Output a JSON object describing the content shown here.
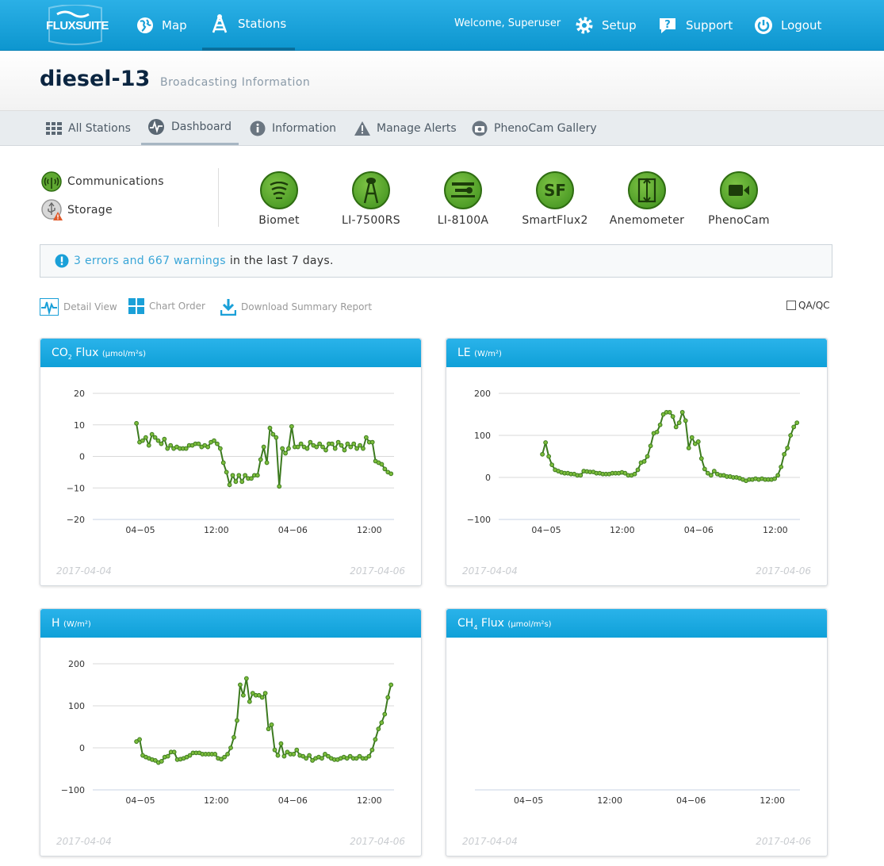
{
  "app": {
    "logo_text": "FLUXSUITE"
  },
  "topnav": {
    "map": "Map",
    "stations": "Stations",
    "welcome": "Welcome, Superuser",
    "setup": "Setup",
    "support": "Support",
    "logout": "Logout"
  },
  "station": {
    "name": "diesel-13",
    "status": "Broadcasting Information"
  },
  "subnav": {
    "all_stations": "All Stations",
    "dashboard": "Dashboard",
    "information": "Information",
    "manage_alerts": "Manage Alerts",
    "phenocam_gallery": "PhenoCam Gallery"
  },
  "status": {
    "communications": "Communications",
    "storage": "Storage"
  },
  "devices": [
    {
      "label": "Biomet",
      "icon": "biomet-icon"
    },
    {
      "label": "LI-7500RS",
      "icon": "analyzer-icon"
    },
    {
      "label": "LI-8100A",
      "icon": "chamber-icon"
    },
    {
      "label": "SmartFlux2",
      "icon": "sf-icon",
      "glyph": "SF"
    },
    {
      "label": "Anemometer",
      "icon": "anemometer-icon"
    },
    {
      "label": "PhenoCam",
      "icon": "camera-icon"
    }
  ],
  "alerts": {
    "link": "3 errors and 667 warnings",
    "suffix": "in the last 7 days."
  },
  "tools": {
    "detail_view": "Detail View",
    "chart_order": "Chart Order",
    "download": "Download Summary Report",
    "qaqc": "QA/QC"
  },
  "colors": {
    "accent": "#1aa7e0",
    "series": "#3c7a1f",
    "marker": "#7cbd3c"
  },
  "chart_data": [
    {
      "type": "line",
      "title": "CO2 Flux",
      "unit": "(μmol/m²s)",
      "ylim": [
        -20,
        20
      ],
      "yticks": [
        "20",
        "10",
        "0",
        "−10",
        "−20"
      ],
      "xticks": [
        "04−05",
        "12:00",
        "04−06",
        "12:00"
      ],
      "date_start": "2017-04-04",
      "date_end": "2017-04-06",
      "values": [
        10.5,
        4.5,
        5,
        6,
        3.5,
        7,
        6,
        5,
        4,
        5.5,
        2.5,
        3.5,
        2.5,
        3,
        2.5,
        2.5,
        2.5,
        3.5,
        3.5,
        4,
        4,
        3,
        3.5,
        3,
        4.5,
        5,
        4,
        2.5,
        -2,
        -5,
        -9,
        -6,
        -8,
        -6,
        -8,
        -6,
        -7,
        -7,
        -6,
        -6,
        -1,
        3,
        -2,
        9,
        7,
        6,
        -9.5,
        2.5,
        1,
        2.5,
        9.5,
        3,
        3,
        4,
        3,
        2.5,
        4.5,
        3.5,
        3,
        4,
        3,
        2,
        4,
        4,
        2.5,
        4.5,
        3.5,
        2,
        4,
        3,
        4,
        2.5,
        3.5,
        2.5,
        6,
        4.5,
        4.5,
        -1.5,
        -2,
        -2.5,
        -4,
        -5,
        -5.5
      ]
    },
    {
      "type": "line",
      "title": "LE",
      "unit": "(W/m²)",
      "ylim": [
        -100,
        200
      ],
      "yticks": [
        "200",
        "100",
        "0",
        "−100"
      ],
      "xticks": [
        "04−05",
        "12:00",
        "04−06",
        "12:00"
      ],
      "date_start": "2017-04-04",
      "date_end": "2017-04-06",
      "values": [
        55,
        83,
        50,
        30,
        18,
        15,
        12,
        10,
        10,
        8,
        8,
        5,
        5,
        15,
        14,
        13,
        13,
        10,
        10,
        8,
        8,
        8,
        10,
        10,
        10,
        12,
        10,
        5,
        5,
        8,
        18,
        35,
        38,
        50,
        75,
        105,
        108,
        125,
        150,
        155,
        155,
        145,
        120,
        130,
        155,
        135,
        70,
        95,
        80,
        85,
        45,
        20,
        10,
        5,
        15,
        8,
        5,
        5,
        2,
        2,
        0,
        0,
        -2,
        -5,
        -8,
        -5,
        -5,
        -3,
        -5,
        -3,
        -5,
        -5,
        -5,
        -3,
        5,
        25,
        55,
        70,
        100,
        120,
        130
      ]
    },
    {
      "type": "line",
      "title": "H",
      "unit": "(W/m²)",
      "ylim": [
        -100,
        200
      ],
      "yticks": [
        "200",
        "100",
        "0",
        "−100"
      ],
      "xticks": [
        "04−05",
        "12:00",
        "04−06",
        "12:00"
      ],
      "date_start": "2017-04-04",
      "date_end": "2017-04-06",
      "values": [
        15,
        20,
        -18,
        -22,
        -25,
        -28,
        -30,
        -35,
        -32,
        -22,
        -20,
        -10,
        -10,
        -28,
        -27,
        -25,
        -22,
        -18,
        -12,
        -12,
        -12,
        -15,
        -15,
        -15,
        -15,
        -15,
        -25,
        -27,
        -22,
        -15,
        0,
        25,
        65,
        150,
        125,
        165,
        110,
        130,
        125,
        125,
        120,
        130,
        45,
        55,
        -5,
        -18,
        10,
        -20,
        -10,
        -15,
        -15,
        -5,
        -18,
        -20,
        -25,
        -18,
        -30,
        -25,
        -22,
        -25,
        -15,
        -20,
        -25,
        -28,
        -28,
        -25,
        -22,
        -25,
        -20,
        -25,
        -25,
        -20,
        -25,
        -25,
        -20,
        -5,
        20,
        45,
        60,
        80,
        120,
        150
      ]
    },
    {
      "type": "line",
      "title": "CH4 Flux",
      "unit": "(μmol/m²s)",
      "yticks": [],
      "xticks": [
        "04−05",
        "12:00",
        "04−06",
        "12:00"
      ],
      "date_start": "2017-04-04",
      "date_end": "2017-04-06",
      "values": []
    }
  ]
}
